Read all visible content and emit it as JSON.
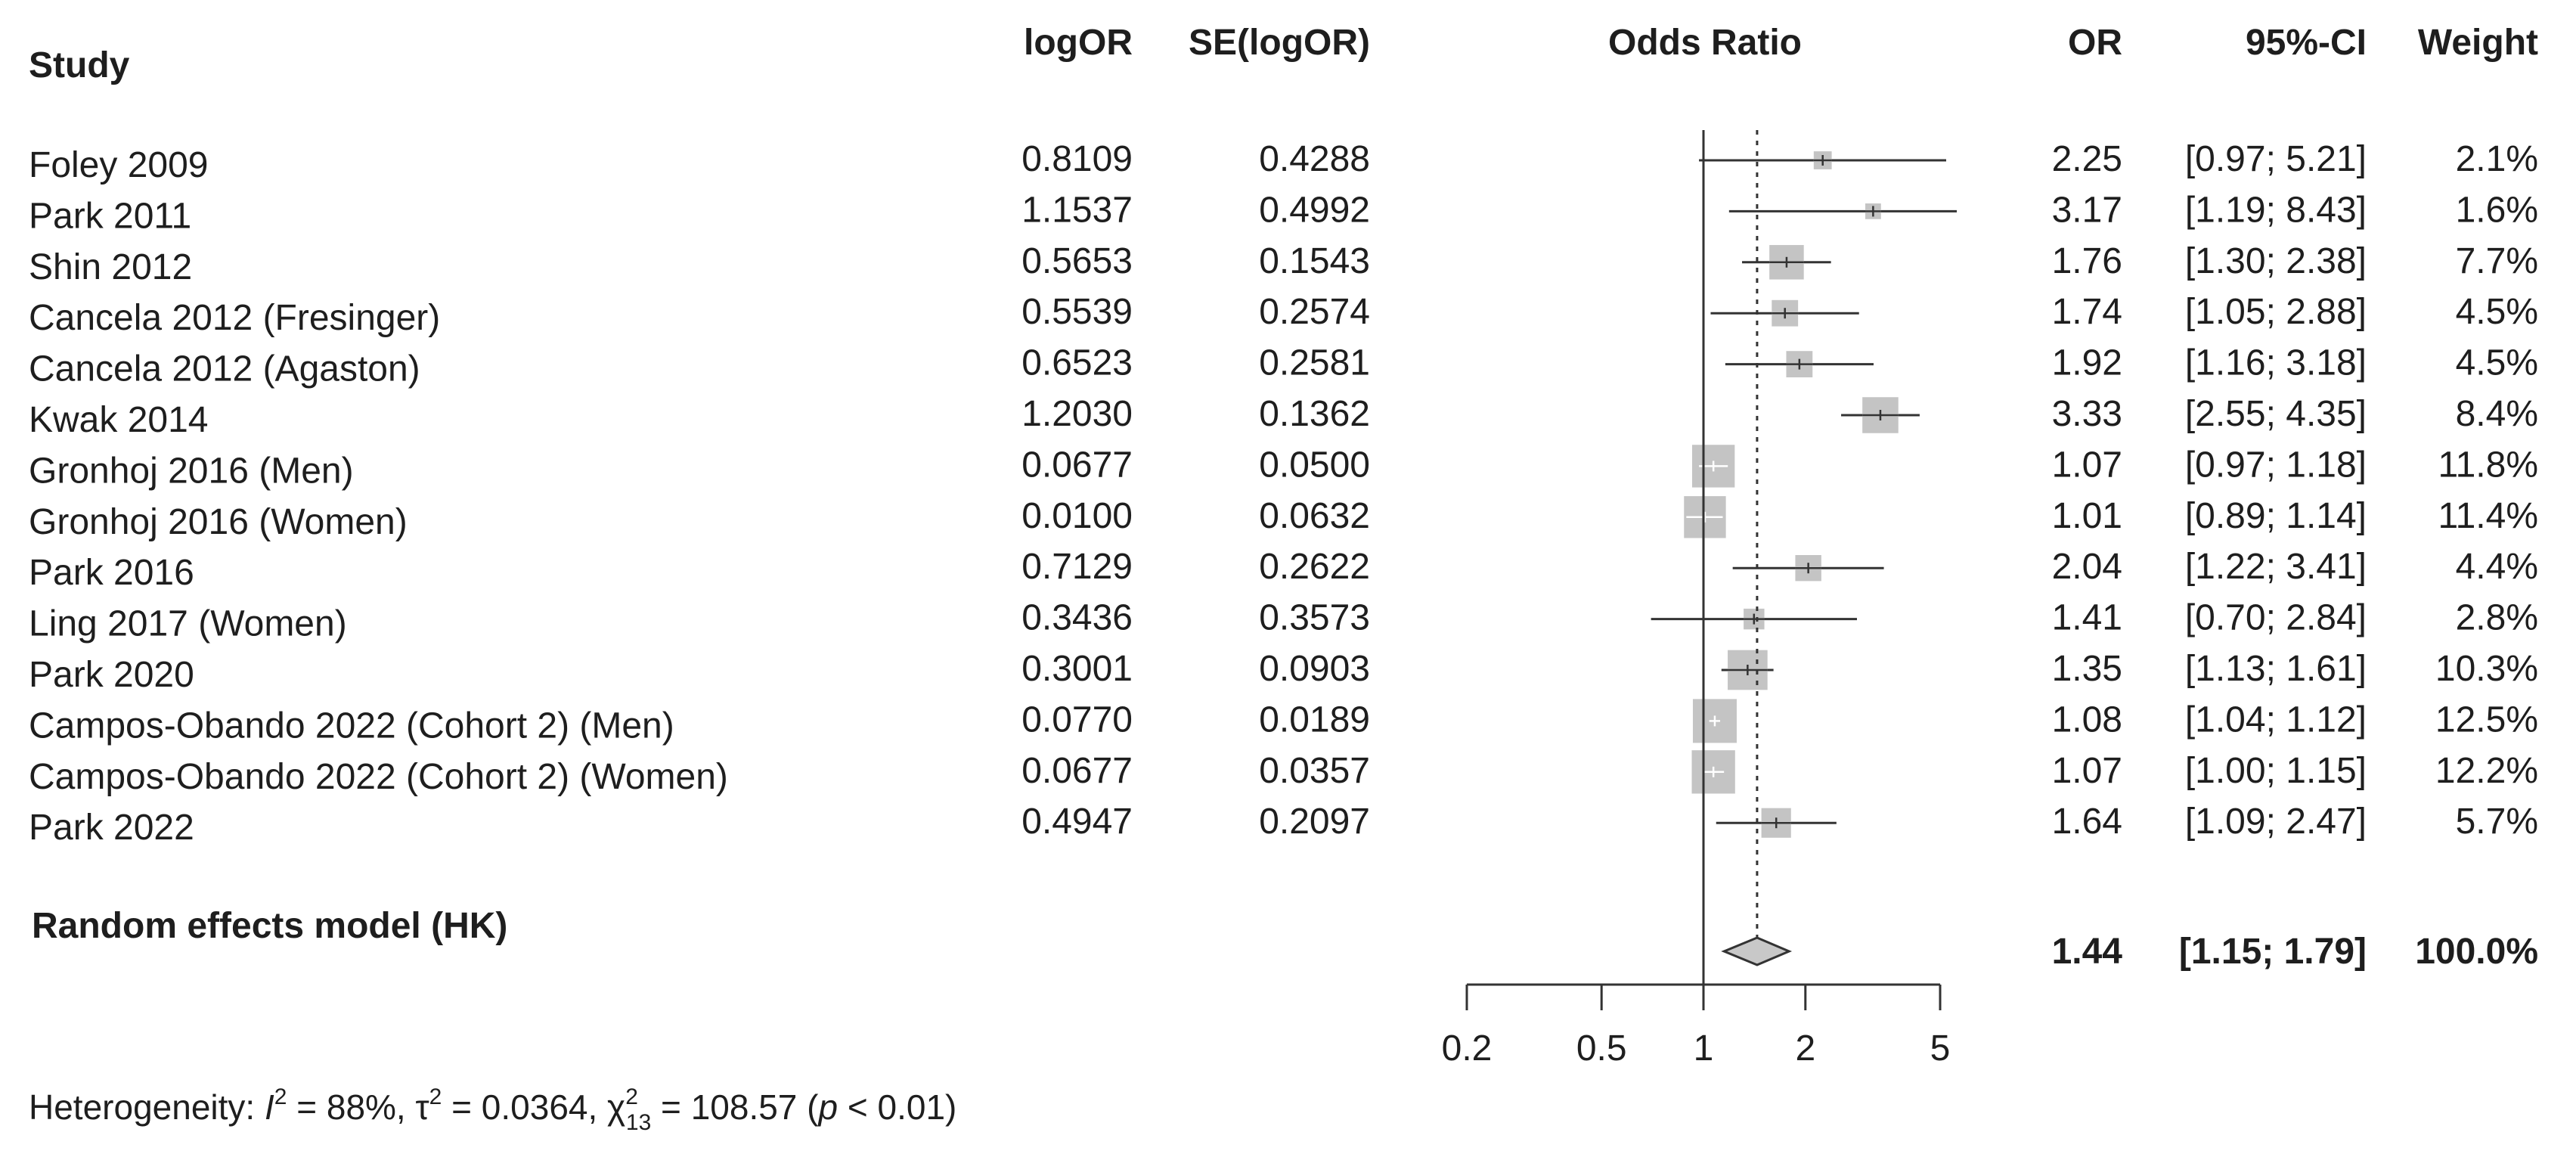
{
  "chart_data": {
    "type": "forest",
    "columns": {
      "study": "Study",
      "logor": "logOR",
      "se": "SE(logOR)",
      "plot": "Odds Ratio",
      "or": "OR",
      "ci": "95%-CI",
      "weight": "Weight"
    },
    "studies": [
      {
        "name": "Foley 2009",
        "logor": "0.8109",
        "se": "0.4288",
        "or": 2.25,
        "lo": 0.97,
        "hi": 5.21,
        "or_text": "2.25",
        "ci_text": "[0.97; 5.21]",
        "weight": 2.1,
        "weight_text": "2.1%"
      },
      {
        "name": "Park 2011",
        "logor": "1.1537",
        "se": "0.4992",
        "or": 3.17,
        "lo": 1.19,
        "hi": 8.43,
        "or_text": "3.17",
        "ci_text": "[1.19; 8.43]",
        "weight": 1.6,
        "weight_text": "1.6%"
      },
      {
        "name": "Shin 2012",
        "logor": "0.5653",
        "se": "0.1543",
        "or": 1.76,
        "lo": 1.3,
        "hi": 2.38,
        "or_text": "1.76",
        "ci_text": "[1.30; 2.38]",
        "weight": 7.7,
        "weight_text": "7.7%"
      },
      {
        "name": "Cancela 2012 (Fresinger)",
        "logor": "0.5539",
        "se": "0.2574",
        "or": 1.74,
        "lo": 1.05,
        "hi": 2.88,
        "or_text": "1.74",
        "ci_text": "[1.05; 2.88]",
        "weight": 4.5,
        "weight_text": "4.5%"
      },
      {
        "name": "Cancela 2012 (Agaston)",
        "logor": "0.6523",
        "se": "0.2581",
        "or": 1.92,
        "lo": 1.16,
        "hi": 3.18,
        "or_text": "1.92",
        "ci_text": "[1.16; 3.18]",
        "weight": 4.5,
        "weight_text": "4.5%"
      },
      {
        "name": "Kwak 2014",
        "logor": "1.2030",
        "se": "0.1362",
        "or": 3.33,
        "lo": 2.55,
        "hi": 4.35,
        "or_text": "3.33",
        "ci_text": "[2.55; 4.35]",
        "weight": 8.4,
        "weight_text": "8.4%"
      },
      {
        "name": "Gronhoj 2016 (Men)",
        "logor": "0.0677",
        "se": "0.0500",
        "or": 1.07,
        "lo": 0.97,
        "hi": 1.18,
        "or_text": "1.07",
        "ci_text": "[0.97; 1.18]",
        "weight": 11.8,
        "weight_text": "11.8%"
      },
      {
        "name": "Gronhoj 2016 (Women)",
        "logor": "0.0100",
        "se": "0.0632",
        "or": 1.01,
        "lo": 0.89,
        "hi": 1.14,
        "or_text": "1.01",
        "ci_text": "[0.89; 1.14]",
        "weight": 11.4,
        "weight_text": "11.4%"
      },
      {
        "name": "Park 2016",
        "logor": "0.7129",
        "se": "0.2622",
        "or": 2.04,
        "lo": 1.22,
        "hi": 3.41,
        "or_text": "2.04",
        "ci_text": "[1.22; 3.41]",
        "weight": 4.4,
        "weight_text": "4.4%"
      },
      {
        "name": "Ling 2017 (Women)",
        "logor": "0.3436",
        "se": "0.3573",
        "or": 1.41,
        "lo": 0.7,
        "hi": 2.84,
        "or_text": "1.41",
        "ci_text": "[0.70; 2.84]",
        "weight": 2.8,
        "weight_text": "2.8%"
      },
      {
        "name": "Park 2020",
        "logor": "0.3001",
        "se": "0.0903",
        "or": 1.35,
        "lo": 1.13,
        "hi": 1.61,
        "or_text": "1.35",
        "ci_text": "[1.13; 1.61]",
        "weight": 10.3,
        "weight_text": "10.3%"
      },
      {
        "name": "Campos-Obando 2022 (Cohort 2) (Men)",
        "logor": "0.0770",
        "se": "0.0189",
        "or": 1.08,
        "lo": 1.04,
        "hi": 1.12,
        "or_text": "1.08",
        "ci_text": "[1.04; 1.12]",
        "weight": 12.5,
        "weight_text": "12.5%"
      },
      {
        "name": "Campos-Obando 2022 (Cohort 2) (Women)",
        "logor": "0.0677",
        "se": "0.0357",
        "or": 1.07,
        "lo": 1.0,
        "hi": 1.15,
        "or_text": "1.07",
        "ci_text": "[1.00; 1.15]",
        "weight": 12.2,
        "weight_text": "12.2%"
      },
      {
        "name": "Park 2022",
        "logor": "0.4947",
        "se": "0.2097",
        "or": 1.64,
        "lo": 1.09,
        "hi": 2.47,
        "or_text": "1.64",
        "ci_text": "[1.09; 2.47]",
        "weight": 5.7,
        "weight_text": "5.7%"
      }
    ],
    "summary": {
      "name": "Random effects model (HK)",
      "or": 1.44,
      "lo": 1.15,
      "hi": 1.79,
      "or_text": "1.44",
      "ci_text": "[1.15; 1.79]",
      "weight_text": "100.0%"
    },
    "x_axis": {
      "scale": "log",
      "ticks": [
        0.2,
        0.5,
        1,
        2,
        5
      ],
      "tick_labels": [
        "0.2",
        "0.5",
        "1",
        "2",
        "5"
      ],
      "range": [
        0.2,
        5
      ],
      "reference_line": 1,
      "summary_line": 1.44
    },
    "heterogeneity": {
      "prefix": "Heterogeneity: ",
      "i2_symbol": "I",
      "i2_sup": "2",
      "i2_value": " = 88%, ",
      "tau2_symbol": "τ",
      "tau2_sup": "2",
      "tau2_value": " = 0.0364, ",
      "chi2_symbol": "χ",
      "chi2_sup": "2",
      "chi2_sub": "13",
      "chi2_value": " = 108.57 (",
      "p_symbol": "p",
      "p_value": " < 0.01)"
    },
    "colors": {
      "text": "#1e1e1e",
      "square": "#c4c4c4",
      "diamond": "#c8c8c8",
      "line": "#333333",
      "whisker_white": "#ffffff"
    }
  }
}
